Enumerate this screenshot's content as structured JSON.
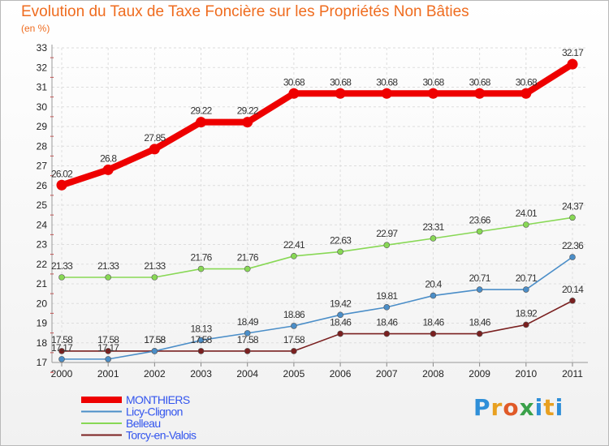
{
  "title": "Evolution du Taux de Taxe Foncière sur les Propriétés Non Bâties",
  "subtitle": "(en %)",
  "logo_text": "Proxiti",
  "chart_data": {
    "type": "line",
    "title": "Evolution du Taux de Taxe Foncière sur les Propriétés Non Bâties",
    "ylabel": "(en %)",
    "xlabel": "",
    "categories": [
      "2000",
      "2001",
      "2002",
      "2003",
      "2004",
      "2005",
      "2006",
      "2007",
      "2008",
      "2009",
      "2010",
      "2011"
    ],
    "ylim": [
      17,
      33
    ],
    "yticks": [
      "17",
      "18",
      "19",
      "20",
      "21",
      "22",
      "23",
      "24",
      "25",
      "26",
      "27",
      "28",
      "29",
      "30",
      "31",
      "32",
      "33"
    ],
    "series": [
      {
        "name": "MONTHIERS",
        "color": "#ee0000",
        "values": [
          26.02,
          26.8,
          27.85,
          29.22,
          29.22,
          30.68,
          30.68,
          30.68,
          30.68,
          30.68,
          30.68,
          32.17
        ],
        "labels": [
          "26.02",
          "26.8",
          "27.85",
          "29.22",
          "29.22",
          "30.68",
          "30.68",
          "30.68",
          "30.68",
          "30.68",
          "30.68",
          "32.17"
        ]
      },
      {
        "name": "Licy-Clignon",
        "color": "#4b8ec8",
        "values": [
          17.17,
          17.17,
          17.58,
          18.13,
          18.49,
          18.86,
          19.42,
          19.81,
          20.4,
          20.71,
          20.71,
          22.36
        ],
        "labels": [
          "17.17",
          "17.17",
          "17.58",
          "18.13",
          "18.49",
          "18.86",
          "19.42",
          "19.81",
          "20.4",
          "20.71",
          "20.71",
          "22.36"
        ]
      },
      {
        "name": "Belleau",
        "color": "#88d855",
        "values": [
          21.33,
          21.33,
          21.33,
          21.76,
          21.76,
          22.41,
          22.63,
          22.97,
          23.31,
          23.66,
          24.01,
          24.37
        ],
        "labels": [
          "21.33",
          "21.33",
          "21.33",
          "21.76",
          "21.76",
          "22.41",
          "22.63",
          "22.97",
          "23.31",
          "23.66",
          "24.01",
          "24.37"
        ]
      },
      {
        "name": "Torcy-en-Valois",
        "color": "#7a2020",
        "values": [
          17.58,
          17.58,
          17.58,
          17.58,
          17.58,
          17.58,
          18.46,
          18.46,
          18.46,
          18.46,
          18.92,
          20.14
        ],
        "labels": [
          "17.58",
          "17.58",
          "17.58",
          "17.58",
          "17.58",
          "17.58",
          "18.46",
          "18.46",
          "18.46",
          "18.46",
          "18.92",
          "20.14"
        ]
      }
    ],
    "legend_position": "bottom-left"
  }
}
